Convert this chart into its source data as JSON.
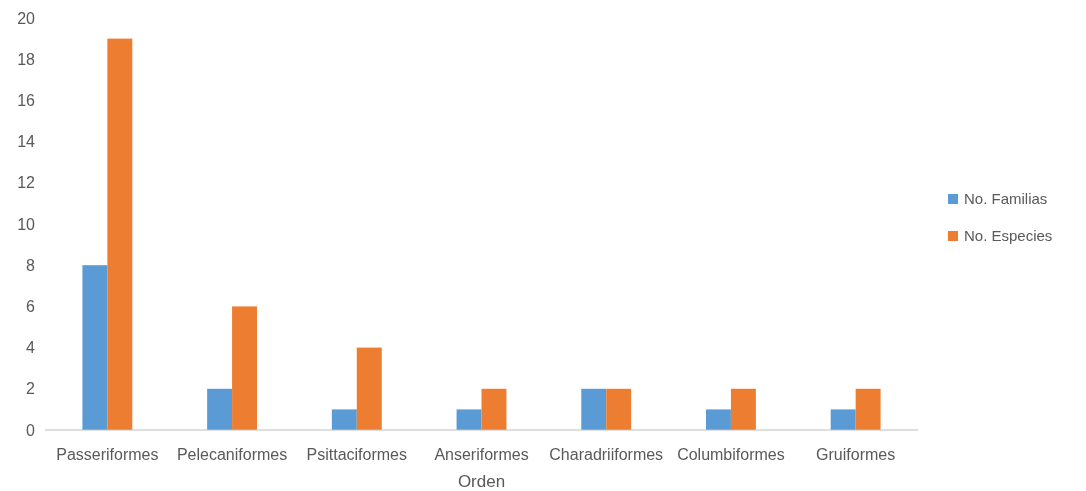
{
  "chart_data": {
    "type": "bar",
    "xlabel": "Orden",
    "categories": [
      "Passeriformes",
      "Pelecaniformes",
      "Psittaciformes",
      "Anseriformes",
      "Charadriiformes",
      "Columbiformes",
      "Gruiformes"
    ],
    "series": [
      {
        "name": "No. Familias",
        "color": "#5b9bd5",
        "values": [
          8,
          2,
          1,
          1,
          2,
          1,
          1
        ]
      },
      {
        "name": "No. Especies",
        "color": "#ed7d31",
        "values": [
          19,
          6,
          4,
          2,
          2,
          2,
          2
        ]
      }
    ],
    "ylim": [
      0,
      20
    ],
    "yticks": [
      0,
      2,
      4,
      6,
      8,
      10,
      12,
      14,
      16,
      18,
      20
    ],
    "grid": false,
    "legend": "right"
  }
}
